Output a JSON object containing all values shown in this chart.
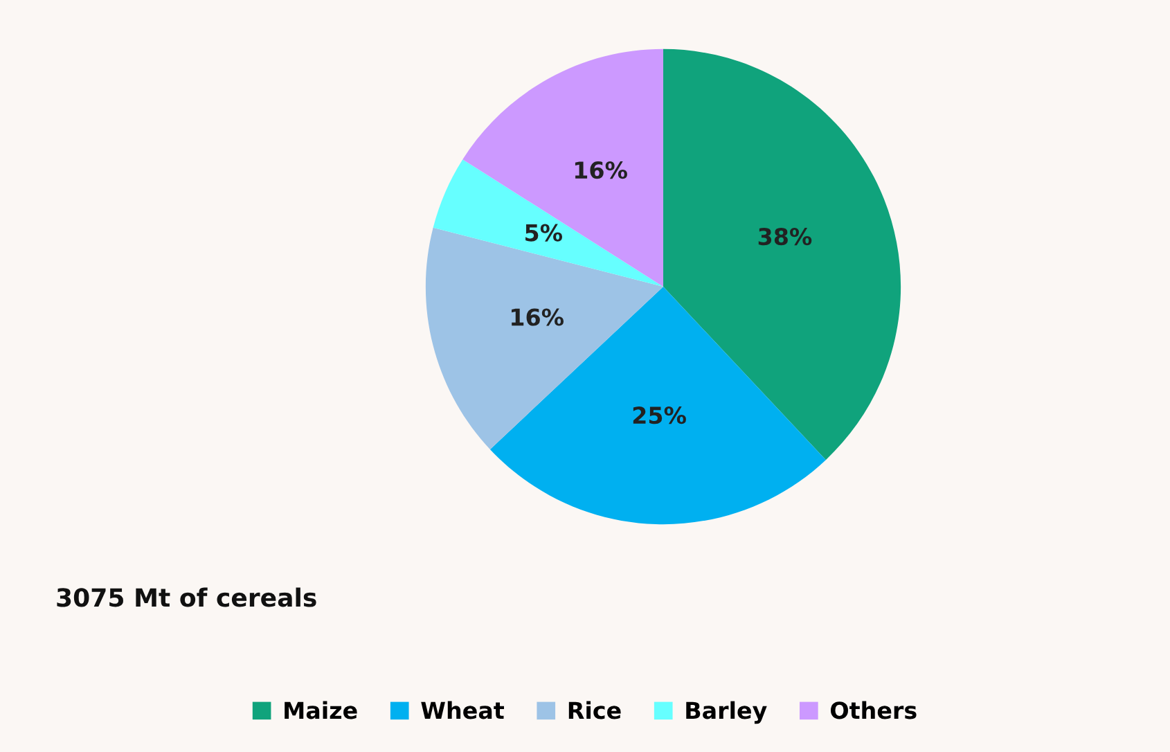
{
  "chart_data": {
    "type": "pie",
    "title": "3075 Mt of cereals",
    "categories": [
      "Maize",
      "Wheat",
      "Rice",
      "Barley",
      "Others"
    ],
    "values": [
      38,
      25,
      16,
      5,
      16
    ],
    "value_labels": [
      "38%",
      "25%",
      "16%",
      "5%",
      "16%"
    ],
    "colors": [
      "#10a37c",
      "#00b0f0",
      "#9dc3e6",
      "#66ffff",
      "#cc99ff"
    ],
    "legend": "bottom"
  }
}
